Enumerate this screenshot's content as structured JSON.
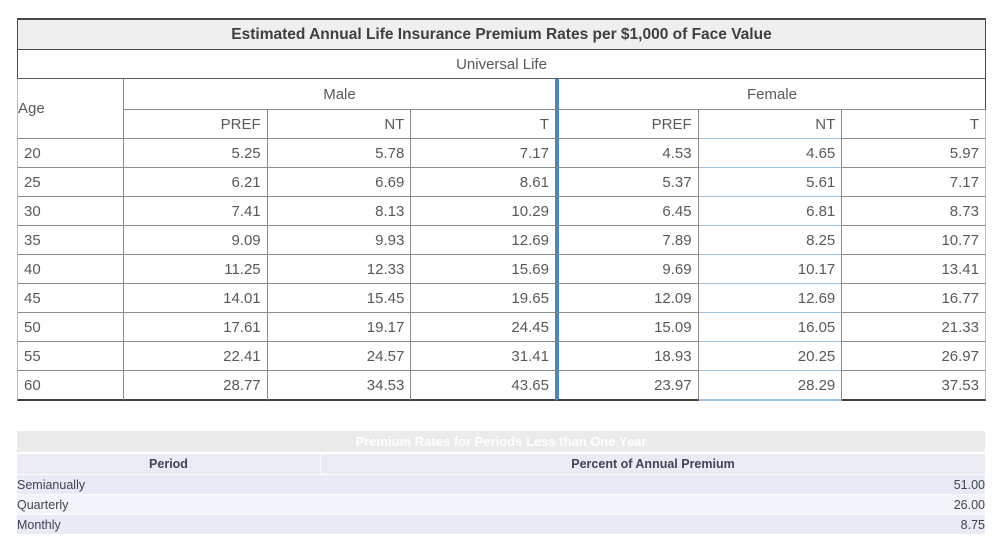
{
  "rate_table": {
    "title": "Estimated Annual Life Insurance Premium Rates per $1,000 of Face Value",
    "subtitle": "Universal Life",
    "age_header": "Age",
    "groups": {
      "male": "Male",
      "female": "Female"
    },
    "class_headers": [
      "PREF",
      "NT",
      "T"
    ],
    "rows": [
      {
        "age": "20",
        "m_pref": "5.25",
        "m_nt": "5.78",
        "m_t": "7.17",
        "f_pref": "4.53",
        "f_nt": "4.65",
        "f_t": "5.97"
      },
      {
        "age": "25",
        "m_pref": "6.21",
        "m_nt": "6.69",
        "m_t": "8.61",
        "f_pref": "5.37",
        "f_nt": "5.61",
        "f_t": "7.17"
      },
      {
        "age": "30",
        "m_pref": "7.41",
        "m_nt": "8.13",
        "m_t": "10.29",
        "f_pref": "6.45",
        "f_nt": "6.81",
        "f_t": "8.73"
      },
      {
        "age": "35",
        "m_pref": "9.09",
        "m_nt": "9.93",
        "m_t": "12.69",
        "f_pref": "7.89",
        "f_nt": "8.25",
        "f_t": "10.77"
      },
      {
        "age": "40",
        "m_pref": "11.25",
        "m_nt": "12.33",
        "m_t": "15.69",
        "f_pref": "9.69",
        "f_nt": "10.17",
        "f_t": "13.41"
      },
      {
        "age": "45",
        "m_pref": "14.01",
        "m_nt": "15.45",
        "m_t": "19.65",
        "f_pref": "12.09",
        "f_nt": "12.69",
        "f_t": "16.77"
      },
      {
        "age": "50",
        "m_pref": "17.61",
        "m_nt": "19.17",
        "m_t": "24.45",
        "f_pref": "15.09",
        "f_nt": "16.05",
        "f_t": "21.33"
      },
      {
        "age": "55",
        "m_pref": "22.41",
        "m_nt": "24.57",
        "m_t": "31.41",
        "f_pref": "18.93",
        "f_nt": "20.25",
        "f_t": "26.97"
      },
      {
        "age": "60",
        "m_pref": "28.77",
        "m_nt": "34.53",
        "m_t": "43.65",
        "f_pref": "23.97",
        "f_nt": "28.29",
        "f_t": "37.53"
      }
    ]
  },
  "periods_table": {
    "title": "Premium Rates for Periods Less than One Year",
    "period_header": "Period",
    "percent_header": "Percent of Annual Premium",
    "rows": [
      {
        "period": "Semianually",
        "percent": "51.00"
      },
      {
        "period": "Quarterly",
        "percent": "26.00"
      },
      {
        "period": "Monthly",
        "percent": "8.75"
      }
    ]
  },
  "colors": {
    "divider_blue": "#4788c0",
    "grid_light_blue": "#9dc3e6",
    "title_bar_bg": "#efefef",
    "periods_title_bg": "#ebebeb",
    "periods_row_lavender": "#e8ebf6",
    "periods_row_light": "#f3f4fa",
    "text_gray": "#595959"
  }
}
